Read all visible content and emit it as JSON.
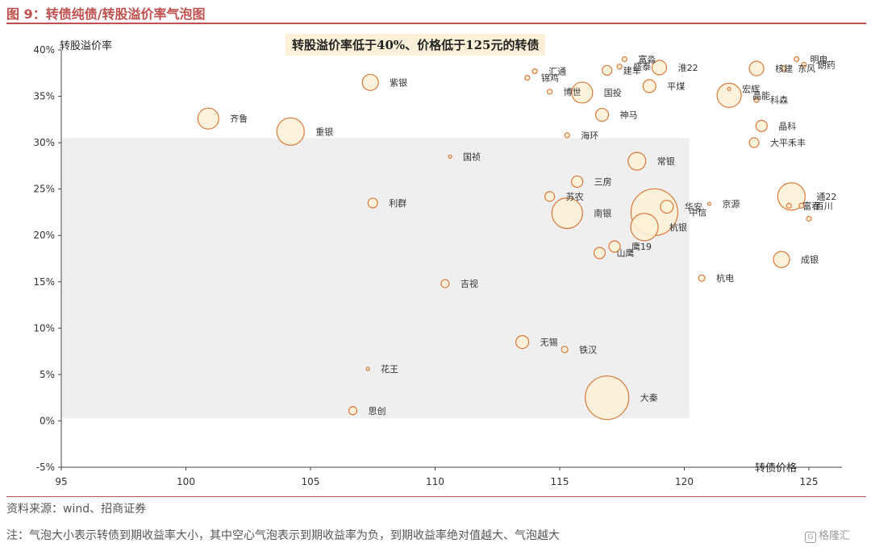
{
  "figure": {
    "title": "图 9：转债纯债/转股溢价率气泡图",
    "source": "资料来源：wind、招商证券",
    "note": "注：气泡大小表示转债到期收益率大小，其中空心气泡表示到期收益率为负，到期收益率绝对值越大、气泡越大",
    "watermark": "格隆汇"
  },
  "colors": {
    "accent": "#c0504d",
    "bubble_fill": "#fdf1d6",
    "bubble_stroke": "#d9793a",
    "shade": "#efefef"
  },
  "chart_data": {
    "type": "scatter",
    "title": "",
    "xlabel": "转债价格",
    "ylabel": "转股溢价率",
    "xlim": [
      95,
      126
    ],
    "ylim": [
      -5,
      40
    ],
    "x_ticks": [
      95,
      100,
      105,
      110,
      115,
      120,
      125
    ],
    "y_ticks": [
      -5,
      0,
      5,
      10,
      15,
      20,
      25,
      30,
      35,
      40
    ],
    "y_tick_labels": [
      "-5%",
      "0%",
      "5%",
      "10%",
      "15%",
      "20%",
      "25%",
      "30%",
      "35%",
      "40%"
    ],
    "annotation": "转股溢价率低于40%、价格低于125元的转债",
    "highlight_region": {
      "x": [
        95,
        120.2
      ],
      "y": [
        0.3,
        30.5
      ]
    },
    "bubble_size_meaning": "到期收益率",
    "points": [
      {
        "name": "紫银",
        "x": 107.4,
        "y": 36.5,
        "size": 10,
        "hollow": false
      },
      {
        "name": "齐鲁",
        "x": 100.9,
        "y": 32.6,
        "size": 13,
        "hollow": false
      },
      {
        "name": "重银",
        "x": 104.2,
        "y": 31.2,
        "size": 17,
        "hollow": false
      },
      {
        "name": "国祯",
        "x": 110.6,
        "y": 28.5,
        "size": 2,
        "hollow": false
      },
      {
        "name": "利群",
        "x": 107.5,
        "y": 23.5,
        "size": 6,
        "hollow": false
      },
      {
        "name": "吉视",
        "x": 110.4,
        "y": 14.8,
        "size": 5,
        "hollow": false
      },
      {
        "name": "花王",
        "x": 107.3,
        "y": 5.6,
        "size": 2,
        "hollow": false
      },
      {
        "name": "思创",
        "x": 106.7,
        "y": 1.1,
        "size": 5,
        "hollow": false
      },
      {
        "name": "锦鸡",
        "x": 113.7,
        "y": 37.0,
        "size": 3,
        "hollow": false
      },
      {
        "name": "汇通",
        "x": 114.0,
        "y": 37.7,
        "size": 3,
        "hollow": false
      },
      {
        "name": "博世",
        "x": 114.6,
        "y": 35.5,
        "size": 3,
        "hollow": false
      },
      {
        "name": "国投",
        "x": 115.9,
        "y": 35.4,
        "size": 13,
        "hollow": false
      },
      {
        "name": "建车",
        "x": 116.9,
        "y": 37.8,
        "size": 6,
        "hollow": false
      },
      {
        "name": "盛泰",
        "x": 117.4,
        "y": 38.2,
        "size": 3,
        "hollow": false
      },
      {
        "name": "富淼",
        "x": 117.6,
        "y": 39.0,
        "size": 3,
        "hollow": false
      },
      {
        "name": "淮22",
        "x": 119.0,
        "y": 38.1,
        "size": 9,
        "hollow": false
      },
      {
        "name": "平煤",
        "x": 118.6,
        "y": 36.1,
        "size": 8,
        "hollow": false
      },
      {
        "name": "神马",
        "x": 116.7,
        "y": 33.0,
        "size": 8,
        "hollow": false
      },
      {
        "name": "海环",
        "x": 115.3,
        "y": 30.8,
        "size": 3,
        "hollow": false
      },
      {
        "name": "常银",
        "x": 118.1,
        "y": 28.0,
        "size": 11,
        "hollow": false
      },
      {
        "name": "三房",
        "x": 115.7,
        "y": 25.8,
        "size": 7,
        "hollow": false
      },
      {
        "name": "苏农",
        "x": 114.6,
        "y": 24.2,
        "size": 6,
        "hollow": false
      },
      {
        "name": "南银",
        "x": 115.3,
        "y": 22.4,
        "size": 19,
        "hollow": false
      },
      {
        "name": "华安",
        "x": 119.3,
        "y": 23.1,
        "size": 8,
        "hollow": false
      },
      {
        "name": "中信",
        "x": 118.8,
        "y": 22.5,
        "size": 29,
        "hollow": false
      },
      {
        "name": "杭银",
        "x": 118.4,
        "y": 20.9,
        "size": 17,
        "hollow": false
      },
      {
        "name": "鹰19",
        "x": 117.2,
        "y": 18.8,
        "size": 7,
        "hollow": false
      },
      {
        "name": "山鹰",
        "x": 116.6,
        "y": 18.1,
        "size": 7,
        "hollow": false
      },
      {
        "name": "无锡",
        "x": 113.5,
        "y": 8.5,
        "size": 8,
        "hollow": false
      },
      {
        "name": "铁汉",
        "x": 115.2,
        "y": 7.7,
        "size": 4,
        "hollow": false
      },
      {
        "name": "大秦",
        "x": 116.9,
        "y": 2.5,
        "size": 27,
        "hollow": false
      },
      {
        "name": "杭电",
        "x": 120.7,
        "y": 15.4,
        "size": 4,
        "hollow": false
      },
      {
        "name": "京源",
        "x": 121.0,
        "y": 23.4,
        "size": 2,
        "hollow": false
      },
      {
        "name": "大平禾丰",
        "x": 122.8,
        "y": 30.0,
        "size": 6,
        "hollow": false
      },
      {
        "name": "晶科",
        "x": 123.1,
        "y": 31.8,
        "size": 7,
        "hollow": false
      },
      {
        "name": "宏辉",
        "x": 121.8,
        "y": 35.8,
        "size": 2,
        "hollow": true
      },
      {
        "name": "晶能",
        "x": 121.8,
        "y": 35.1,
        "size": 15,
        "hollow": false
      },
      {
        "name": "科森",
        "x": 122.9,
        "y": 34.6,
        "size": 3,
        "hollow": false
      },
      {
        "name": "核建",
        "x": 122.9,
        "y": 38.0,
        "size": 9,
        "hollow": false
      },
      {
        "name": "明电",
        "x": 124.5,
        "y": 39.0,
        "size": 3,
        "hollow": false
      },
      {
        "name": "东风",
        "x": 124.0,
        "y": 38.0,
        "size": 3,
        "hollow": false
      },
      {
        "name": "朗药",
        "x": 124.8,
        "y": 38.4,
        "size": 3,
        "hollow": false
      },
      {
        "name": "成银",
        "x": 123.9,
        "y": 17.4,
        "size": 10,
        "hollow": false
      },
      {
        "name": "通22",
        "x": 124.3,
        "y": 24.2,
        "size": 17,
        "hollow": false
      },
      {
        "name": "富春",
        "x": 124.2,
        "y": 23.2,
        "size": 3,
        "hollow": false
      },
      {
        "name": "百川",
        "x": 124.7,
        "y": 23.2,
        "size": 3,
        "hollow": false
      },
      {
        "name": "",
        "x": 125.0,
        "y": 21.8,
        "size": 3,
        "hollow": false
      }
    ]
  }
}
